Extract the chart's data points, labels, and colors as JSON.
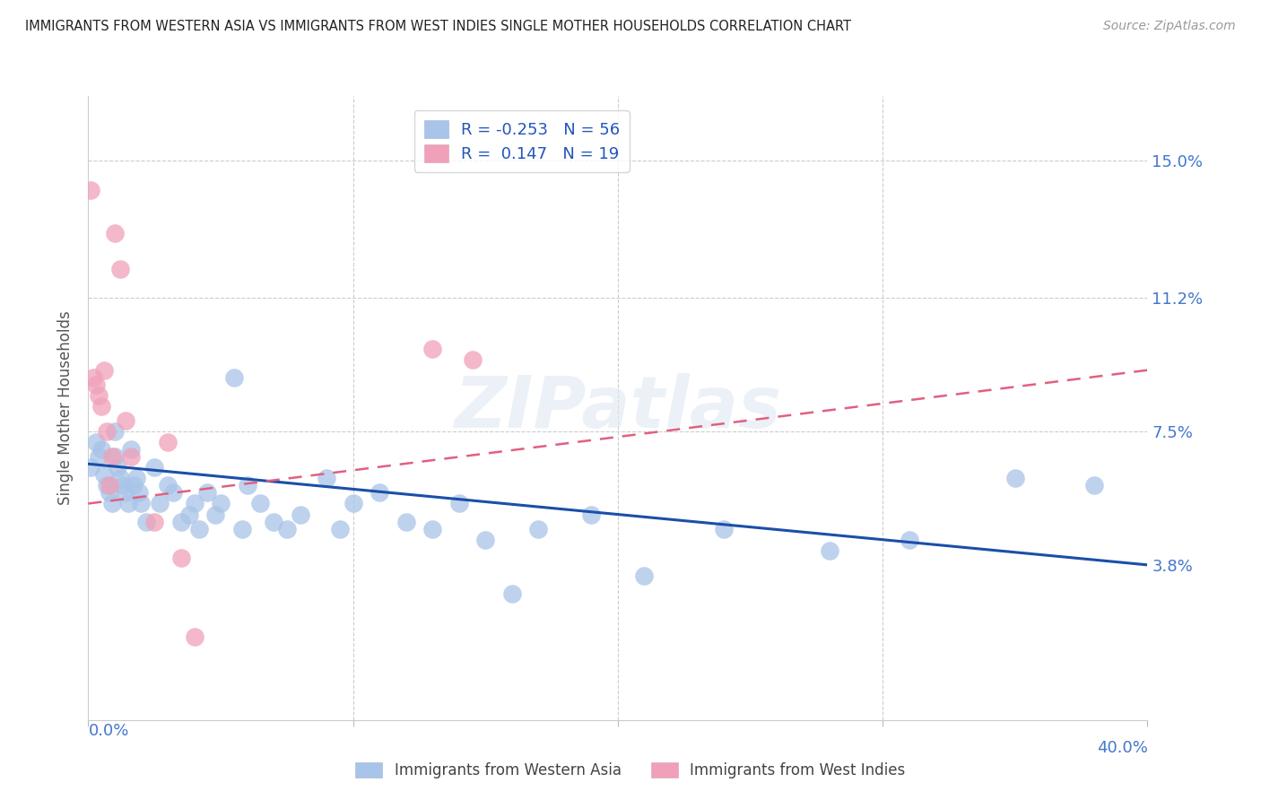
{
  "title": "IMMIGRANTS FROM WESTERN ASIA VS IMMIGRANTS FROM WEST INDIES SINGLE MOTHER HOUSEHOLDS CORRELATION CHART",
  "source": "Source: ZipAtlas.com",
  "ylabel": "Single Mother Households",
  "yticks": [
    0.0,
    0.038,
    0.075,
    0.112,
    0.15
  ],
  "ytick_labels": [
    "",
    "3.8%",
    "7.5%",
    "11.2%",
    "15.0%"
  ],
  "xlim": [
    0.0,
    0.4
  ],
  "ylim": [
    -0.005,
    0.168
  ],
  "legend_r1": "R = -0.253",
  "legend_n1": "N = 56",
  "legend_r2": "R =  0.147",
  "legend_n2": "N = 19",
  "blue_color": "#a8c4e8",
  "pink_color": "#f0a0b8",
  "blue_line_color": "#1a4faa",
  "pink_line_color": "#e06080",
  "grid_color": "#cccccc",
  "title_color": "#222222",
  "axis_label_color": "#4477cc",
  "blue_scatter_x": [
    0.001,
    0.003,
    0.004,
    0.005,
    0.006,
    0.007,
    0.008,
    0.009,
    0.01,
    0.01,
    0.011,
    0.012,
    0.013,
    0.014,
    0.015,
    0.016,
    0.017,
    0.018,
    0.019,
    0.02,
    0.022,
    0.025,
    0.027,
    0.03,
    0.032,
    0.035,
    0.038,
    0.04,
    0.042,
    0.045,
    0.048,
    0.05,
    0.055,
    0.058,
    0.06,
    0.065,
    0.07,
    0.075,
    0.08,
    0.09,
    0.095,
    0.1,
    0.11,
    0.12,
    0.13,
    0.14,
    0.15,
    0.16,
    0.17,
    0.19,
    0.21,
    0.24,
    0.28,
    0.31,
    0.35,
    0.38
  ],
  "blue_scatter_y": [
    0.065,
    0.072,
    0.068,
    0.07,
    0.063,
    0.06,
    0.058,
    0.055,
    0.068,
    0.075,
    0.065,
    0.062,
    0.06,
    0.058,
    0.055,
    0.07,
    0.06,
    0.062,
    0.058,
    0.055,
    0.05,
    0.065,
    0.055,
    0.06,
    0.058,
    0.05,
    0.052,
    0.055,
    0.048,
    0.058,
    0.052,
    0.055,
    0.09,
    0.048,
    0.06,
    0.055,
    0.05,
    0.048,
    0.052,
    0.062,
    0.048,
    0.055,
    0.058,
    0.05,
    0.048,
    0.055,
    0.045,
    0.03,
    0.048,
    0.052,
    0.035,
    0.048,
    0.042,
    0.045,
    0.062,
    0.06
  ],
  "pink_scatter_x": [
    0.001,
    0.002,
    0.003,
    0.004,
    0.005,
    0.006,
    0.007,
    0.008,
    0.009,
    0.01,
    0.012,
    0.014,
    0.016,
    0.025,
    0.03,
    0.035,
    0.04,
    0.13,
    0.145
  ],
  "pink_scatter_y": [
    0.142,
    0.09,
    0.088,
    0.085,
    0.082,
    0.092,
    0.075,
    0.06,
    0.068,
    0.13,
    0.12,
    0.078,
    0.068,
    0.05,
    0.072,
    0.04,
    0.018,
    0.098,
    0.095
  ],
  "blue_line_x0": 0.0,
  "blue_line_x1": 0.4,
  "blue_line_y0": 0.066,
  "blue_line_y1": 0.038,
  "pink_line_x0": 0.0,
  "pink_line_x1": 0.4,
  "pink_line_y0": 0.055,
  "pink_line_y1": 0.092
}
